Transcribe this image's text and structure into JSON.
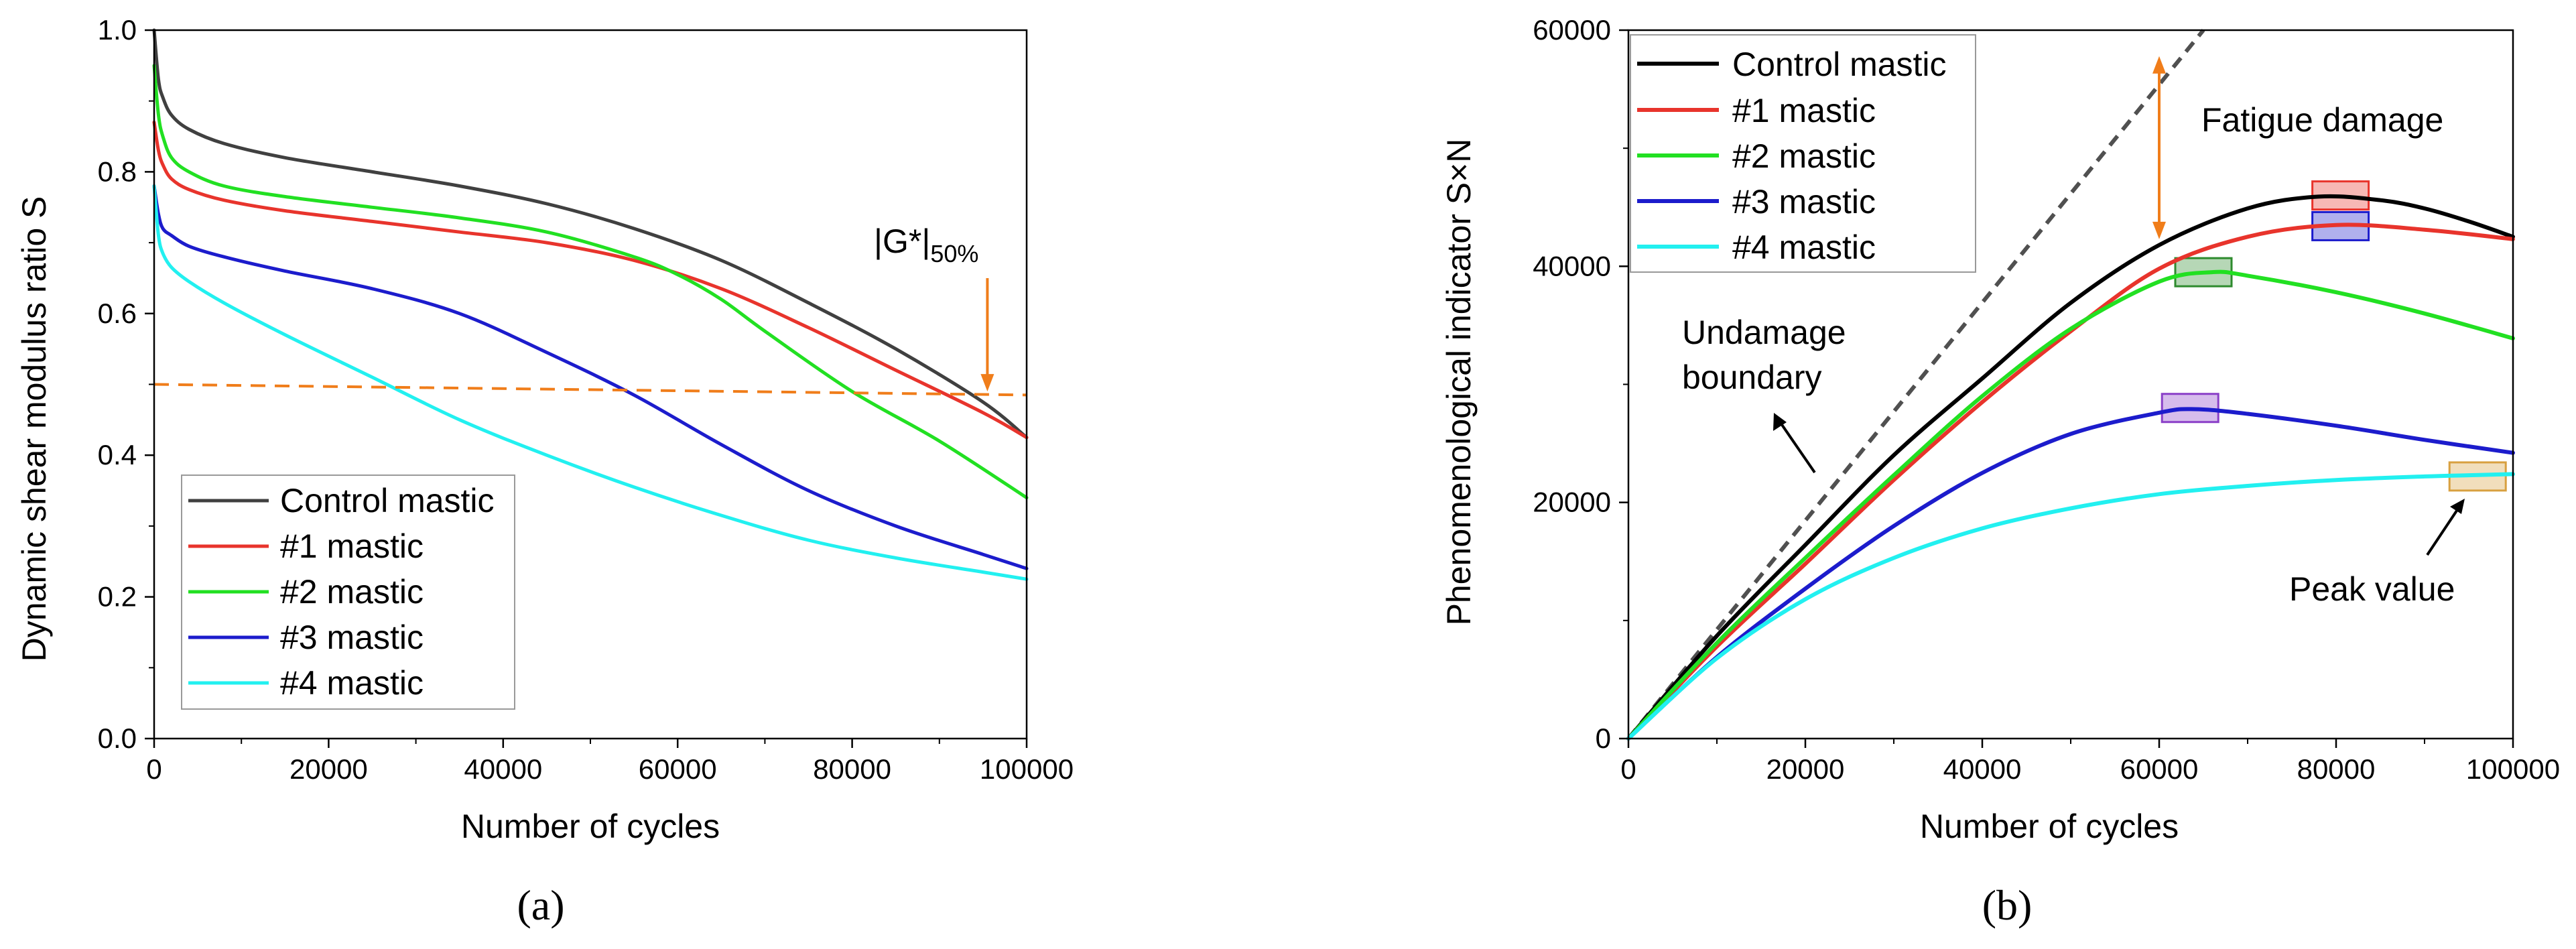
{
  "chart_data": [
    {
      "type": "line",
      "panel_label": "(a)",
      "xlabel": "Number of cycles",
      "ylabel": "Dynamic shear modulus ratio S",
      "xlim": [
        0,
        100000
      ],
      "ylim": [
        0,
        1.0
      ],
      "x_ticks": [
        0,
        20000,
        40000,
        60000,
        80000,
        100000
      ],
      "y_ticks": [
        0.0,
        0.2,
        0.4,
        0.6,
        0.8,
        1.0
      ],
      "x_tick_labels": [
        "0",
        "20000",
        "40000",
        "60000",
        "80000",
        "100000"
      ],
      "y_tick_labels": [
        "0.0",
        "0.2",
        "0.4",
        "0.6",
        "0.8",
        "1.0"
      ],
      "legend_position": "bottom-left",
      "series": [
        {
          "name": "Control mastic",
          "color": "#404040",
          "x": [
            0,
            500,
            1000,
            2000,
            4000,
            8000,
            15000,
            25000,
            35000,
            45000,
            55000,
            65000,
            75000,
            85000,
            95000,
            100000
          ],
          "y": [
            1.0,
            0.93,
            0.905,
            0.88,
            0.86,
            0.84,
            0.82,
            0.8,
            0.78,
            0.755,
            0.72,
            0.675,
            0.615,
            0.55,
            0.475,
            0.425
          ]
        },
        {
          "name": "#1 mastic",
          "color": "#e8342c",
          "x": [
            0,
            500,
            1000,
            2000,
            4000,
            8000,
            15000,
            25000,
            35000,
            45000,
            55000,
            65000,
            75000,
            85000,
            95000,
            100000
          ],
          "y": [
            0.87,
            0.83,
            0.81,
            0.79,
            0.775,
            0.76,
            0.745,
            0.73,
            0.715,
            0.7,
            0.675,
            0.635,
            0.58,
            0.52,
            0.46,
            0.425
          ]
        },
        {
          "name": "#2 mastic",
          "color": "#22e022",
          "x": [
            0,
            500,
            1000,
            2000,
            4000,
            8000,
            15000,
            25000,
            35000,
            45000,
            55000,
            60000,
            65000,
            70000,
            80000,
            90000,
            100000
          ],
          "y": [
            0.95,
            0.88,
            0.85,
            0.82,
            0.8,
            0.78,
            0.765,
            0.75,
            0.735,
            0.715,
            0.68,
            0.655,
            0.62,
            0.575,
            0.49,
            0.42,
            0.34
          ]
        },
        {
          "name": "#3 mastic",
          "color": "#1c1ccc",
          "x": [
            0,
            500,
            1000,
            2000,
            4000,
            8000,
            15000,
            25000,
            35000,
            45000,
            55000,
            65000,
            75000,
            85000,
            95000,
            100000
          ],
          "y": [
            0.78,
            0.74,
            0.72,
            0.71,
            0.695,
            0.68,
            0.66,
            0.635,
            0.6,
            0.545,
            0.485,
            0.415,
            0.35,
            0.3,
            0.26,
            0.24
          ]
        },
        {
          "name": "#4 mastic",
          "color": "#22f0f0",
          "x": [
            0,
            500,
            1000,
            2000,
            4000,
            8000,
            15000,
            25000,
            35000,
            45000,
            55000,
            65000,
            75000,
            85000,
            95000,
            100000
          ],
          "y": [
            0.78,
            0.71,
            0.685,
            0.665,
            0.645,
            0.615,
            0.57,
            0.51,
            0.45,
            0.4,
            0.355,
            0.315,
            0.28,
            0.255,
            0.235,
            0.225
          ]
        }
      ],
      "reference_line": {
        "label": "|G*|",
        "subscript": "50%",
        "color": "#f07d1a",
        "x": [
          0,
          100000
        ],
        "y": [
          0.5,
          0.485
        ]
      },
      "annotation_arrow": {
        "x": 95500,
        "y_from": 0.65,
        "y_to": 0.49,
        "color": "#f07d1a"
      }
    },
    {
      "type": "line",
      "panel_label": "(b)",
      "xlabel": "Number of cycles",
      "ylabel": "Phenomenological indicator S×N",
      "xlim": [
        0,
        100000
      ],
      "ylim": [
        0,
        60000
      ],
      "x_ticks": [
        0,
        20000,
        40000,
        60000,
        80000,
        100000
      ],
      "y_ticks": [
        0,
        20000,
        40000,
        60000
      ],
      "x_tick_labels": [
        "0",
        "20000",
        "40000",
        "60000",
        "80000",
        "100000"
      ],
      "y_tick_labels": [
        "0",
        "20000",
        "40000",
        "60000"
      ],
      "legend_position": "top-left",
      "series": [
        {
          "name": "Control mastic",
          "color": "#000000",
          "x": [
            0,
            10000,
            20000,
            30000,
            40000,
            50000,
            60000,
            70000,
            78000,
            85000,
            90000,
            95000,
            100000
          ],
          "y": [
            0,
            8700,
            16400,
            24000,
            30500,
            36900,
            41800,
            44900,
            45900,
            45600,
            44900,
            43800,
            42500
          ]
        },
        {
          "name": "#1 mastic",
          "color": "#e8342c",
          "x": [
            0,
            10000,
            20000,
            30000,
            40000,
            50000,
            60000,
            70000,
            80000,
            90000,
            100000
          ],
          "y": [
            0,
            7800,
            14800,
            21900,
            28500,
            34500,
            39800,
            42500,
            43500,
            43100,
            42300
          ]
        },
        {
          "name": "#2 mastic",
          "color": "#22e022",
          "x": [
            0,
            10000,
            20000,
            30000,
            40000,
            50000,
            60000,
            66000,
            70000,
            80000,
            90000,
            100000
          ],
          "y": [
            0,
            8100,
            15300,
            22300,
            29000,
            34700,
            38700,
            39500,
            39200,
            37800,
            36000,
            33900
          ]
        },
        {
          "name": "#3 mastic",
          "color": "#1c1ccc",
          "x": [
            0,
            10000,
            20000,
            30000,
            40000,
            50000,
            60000,
            64000,
            70000,
            80000,
            90000,
            100000
          ],
          "y": [
            0,
            6900,
            12700,
            18000,
            22500,
            25800,
            27600,
            27900,
            27500,
            26500,
            25300,
            24200
          ]
        },
        {
          "name": "#4 mastic",
          "color": "#22f0f0",
          "x": [
            0,
            10000,
            20000,
            30000,
            40000,
            50000,
            60000,
            70000,
            80000,
            90000,
            95000,
            100000
          ],
          "y": [
            0,
            6800,
            11800,
            15300,
            17800,
            19500,
            20700,
            21400,
            21900,
            22200,
            22300,
            22400
          ]
        }
      ],
      "boundary_line": {
        "color": "#505050",
        "x": [
          0,
          65000
        ],
        "y": [
          0,
          60000
        ]
      },
      "peak_markers": [
        {
          "x": 80500,
          "y": 46000,
          "color": "#e8342c"
        },
        {
          "x": 80500,
          "y": 43400,
          "color": "#1c1ccc"
        },
        {
          "x": 65000,
          "y": 39500,
          "color": "#2e8b2e"
        },
        {
          "x": 63500,
          "y": 28000,
          "color": "#8a3fc8"
        },
        {
          "x": 96000,
          "y": 22200,
          "color": "#d8a040"
        }
      ],
      "fatigue_arrow": {
        "x": 60000,
        "y_from": 57800,
        "y_to": 42300,
        "color": "#f07d1a"
      },
      "annotations": {
        "fatigue_damage": "Fatigue damage",
        "undamage_line1": "Undamage",
        "undamage_line2": "boundary",
        "peak_value": "Peak value"
      }
    }
  ]
}
